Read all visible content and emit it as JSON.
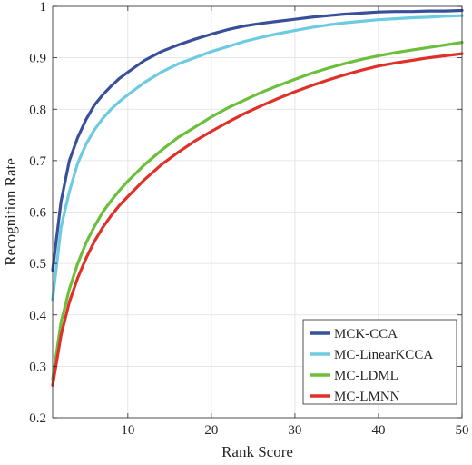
{
  "chart_data": {
    "type": "line",
    "title": "",
    "xlabel": "Rank Score",
    "ylabel": "Recognition Rate",
    "xlim": [
      1,
      50
    ],
    "ylim": [
      0.2,
      1.0
    ],
    "xticks": [
      10,
      20,
      30,
      40,
      50
    ],
    "yticks": [
      0.2,
      0.3,
      0.4,
      0.5,
      0.6,
      0.7,
      0.8,
      0.9,
      1.0
    ],
    "ytick_labels": [
      "0.2",
      "0.3",
      "0.4",
      "0.5",
      "0.6",
      "0.7",
      "0.8",
      "0.9",
      "1"
    ],
    "grid": true,
    "legend_position": "bottom-right",
    "x": [
      1,
      2,
      3,
      4,
      5,
      6,
      7,
      8,
      9,
      10,
      12,
      14,
      16,
      18,
      20,
      22,
      24,
      26,
      28,
      30,
      32,
      34,
      36,
      38,
      40,
      42,
      44,
      46,
      48,
      50
    ],
    "series": [
      {
        "name": "MCK-CCA",
        "color": "#3a4f9a",
        "values": [
          0.487,
          0.62,
          0.7,
          0.745,
          0.78,
          0.808,
          0.828,
          0.845,
          0.86,
          0.872,
          0.895,
          0.912,
          0.925,
          0.936,
          0.946,
          0.955,
          0.962,
          0.967,
          0.971,
          0.975,
          0.979,
          0.982,
          0.985,
          0.987,
          0.989,
          0.99,
          0.99,
          0.991,
          0.991,
          0.992
        ]
      },
      {
        "name": "MC-LinearKCCA",
        "color": "#6ccbe0",
        "values": [
          0.43,
          0.57,
          0.64,
          0.695,
          0.732,
          0.76,
          0.782,
          0.8,
          0.815,
          0.828,
          0.852,
          0.872,
          0.888,
          0.9,
          0.912,
          0.922,
          0.932,
          0.94,
          0.947,
          0.953,
          0.959,
          0.964,
          0.968,
          0.971,
          0.974,
          0.976,
          0.978,
          0.979,
          0.981,
          0.982
        ]
      },
      {
        "name": "MC-LDML",
        "color": "#6bbf3a",
        "values": [
          0.275,
          0.385,
          0.45,
          0.5,
          0.54,
          0.572,
          0.6,
          0.622,
          0.642,
          0.66,
          0.692,
          0.72,
          0.745,
          0.765,
          0.785,
          0.803,
          0.818,
          0.833,
          0.846,
          0.858,
          0.87,
          0.88,
          0.889,
          0.897,
          0.904,
          0.91,
          0.915,
          0.92,
          0.925,
          0.93
        ]
      },
      {
        "name": "MC-LMNN",
        "color": "#e0302a",
        "values": [
          0.263,
          0.36,
          0.425,
          0.472,
          0.51,
          0.543,
          0.57,
          0.593,
          0.613,
          0.63,
          0.663,
          0.692,
          0.716,
          0.738,
          0.757,
          0.775,
          0.792,
          0.807,
          0.821,
          0.834,
          0.846,
          0.857,
          0.867,
          0.876,
          0.884,
          0.89,
          0.895,
          0.9,
          0.904,
          0.908
        ]
      }
    ]
  }
}
